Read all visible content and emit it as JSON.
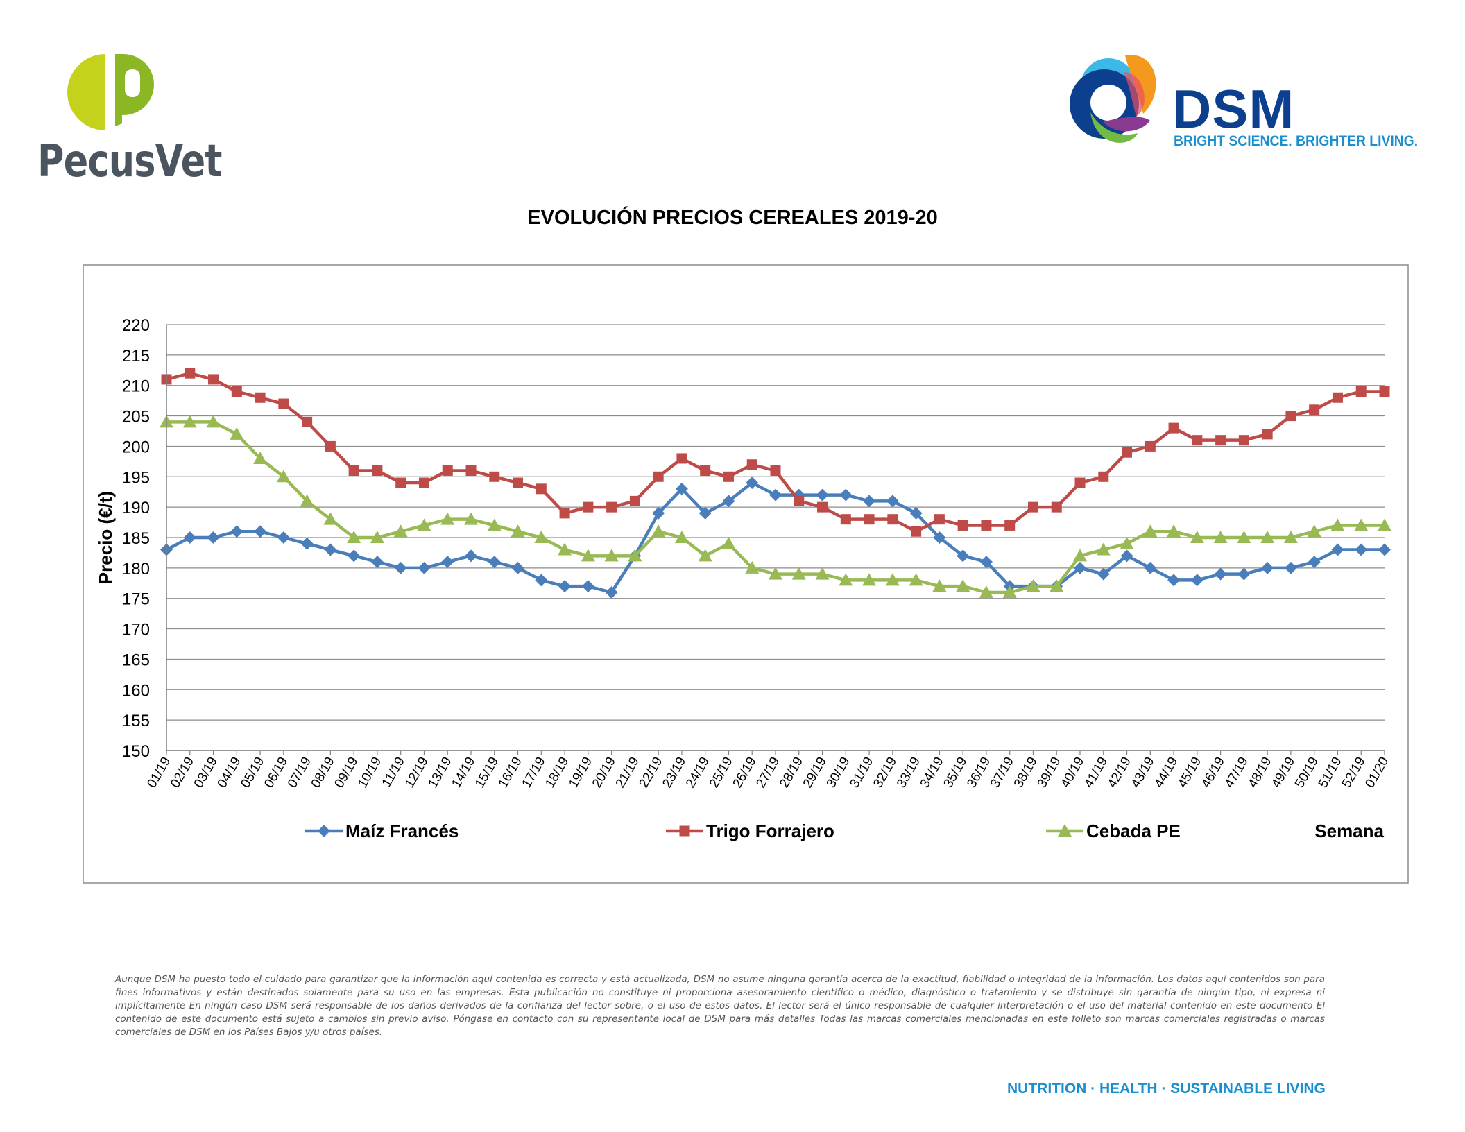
{
  "brand_left": {
    "name": "PecusVet",
    "logo_icon": "pecusvet-p-logo",
    "colors": [
      "#c5d21b",
      "#8bb724",
      "#4b5560"
    ]
  },
  "brand_right": {
    "name": "DSM",
    "tagline": "BRIGHT SCIENCE. BRIGHTER LIVING.",
    "logo_icon": "dsm-swirl-logo",
    "colors": [
      "#0c3f8d",
      "#1a8fd0"
    ]
  },
  "footer": {
    "disclaimer": "Aunque DSM ha puesto todo el cuidado para garantizar que la información aquí contenida es correcta y está actualizada, DSM no asume ninguna garantía acerca de la exactitud, fiabilidad o integridad de la información. Los datos aquí contenidos son para fines informativos y están destinados solamente para su uso en las empresas. Esta publicación no constituye ni proporciona asesoramiento científico o médico, diagnóstico o tratamiento y se distribuye sin garantía de ningún tipo, ni expresa ni implícitamente En ningún caso DSM será responsable de los daños derivados de la confianza del lector sobre, o el uso de estos datos. El lector será el único responsable de cualquier interpretación o el uso del material contenido en este documento El contenido de este documento está sujeto a cambios sin previo aviso. Póngase en contacto con su representante local de DSM para más detalles Todas las marcas comerciales mencionadas en este folleto son marcas comerciales registradas o marcas comerciales de DSM en los Países Bajos y/u otros países.",
    "tagline": "NUTRITION · HEALTH · SUSTAINABLE LIVING"
  },
  "chart_data": {
    "type": "line",
    "title": "EVOLUCIÓN PRECIOS CEREALES 2019-20",
    "xlabel": "Semana",
    "ylabel": "Precio (€/t)",
    "ylim": [
      150,
      220
    ],
    "y_ticks": [
      150,
      155,
      160,
      165,
      170,
      175,
      180,
      185,
      190,
      195,
      200,
      205,
      210,
      215,
      220
    ],
    "grid": "horizontal",
    "legend_position": "bottom",
    "categories": [
      "01/19",
      "02/19",
      "03/19",
      "04/19",
      "05/19",
      "06/19",
      "07/19",
      "08/19",
      "09/19",
      "10/19",
      "11/19",
      "12/19",
      "13/19",
      "14/19",
      "15/19",
      "16/19",
      "17/19",
      "18/19",
      "19/19",
      "20/19",
      "21/19",
      "22/19",
      "23/19",
      "24/19",
      "25/19",
      "26/19",
      "27/19",
      "28/19",
      "29/19",
      "30/19",
      "31/19",
      "32/19",
      "33/19",
      "34/19",
      "35/19",
      "36/19",
      "37/19",
      "38/19",
      "39/19",
      "40/19",
      "41/19",
      "42/19",
      "43/19",
      "44/19",
      "45/19",
      "46/19",
      "47/19",
      "48/19",
      "49/19",
      "50/19",
      "51/19",
      "52/19",
      "01/20"
    ],
    "series": [
      {
        "name": "Maíz Francés",
        "color": "#4a7ebb",
        "marker": "diamond",
        "values": [
          183,
          185,
          185,
          186,
          186,
          185,
          184,
          183,
          182,
          181,
          180,
          180,
          181,
          182,
          181,
          180,
          178,
          177,
          177,
          176,
          182,
          189,
          193,
          189,
          191,
          194,
          192,
          192,
          192,
          192,
          191,
          191,
          189,
          185,
          182,
          181,
          177,
          177,
          177,
          180,
          179,
          182,
          180,
          178,
          178,
          179,
          179,
          180,
          180,
          181,
          183,
          183,
          183
        ]
      },
      {
        "name": "Trigo Forrajero",
        "color": "#be4b48",
        "marker": "square",
        "values": [
          211,
          212,
          211,
          209,
          208,
          207,
          204,
          200,
          196,
          196,
          194,
          194,
          196,
          196,
          195,
          194,
          193,
          189,
          190,
          190,
          191,
          195,
          198,
          196,
          195,
          197,
          196,
          191,
          190,
          188,
          188,
          188,
          186,
          188,
          187,
          187,
          187,
          190,
          190,
          194,
          195,
          199,
          200,
          203,
          201,
          201,
          201,
          202,
          205,
          206,
          208,
          209,
          209
        ]
      },
      {
        "name": "Cebada PE",
        "color": "#98b954",
        "marker": "triangle",
        "values": [
          204,
          204,
          204,
          202,
          198,
          195,
          191,
          188,
          185,
          185,
          186,
          187,
          188,
          188,
          187,
          186,
          185,
          183,
          182,
          182,
          182,
          186,
          185,
          182,
          184,
          180,
          179,
          179,
          179,
          178,
          178,
          178,
          178,
          177,
          177,
          176,
          176,
          177,
          177,
          182,
          183,
          184,
          186,
          186,
          185,
          185,
          185,
          185,
          185,
          186,
          187,
          187,
          187
        ]
      }
    ]
  }
}
